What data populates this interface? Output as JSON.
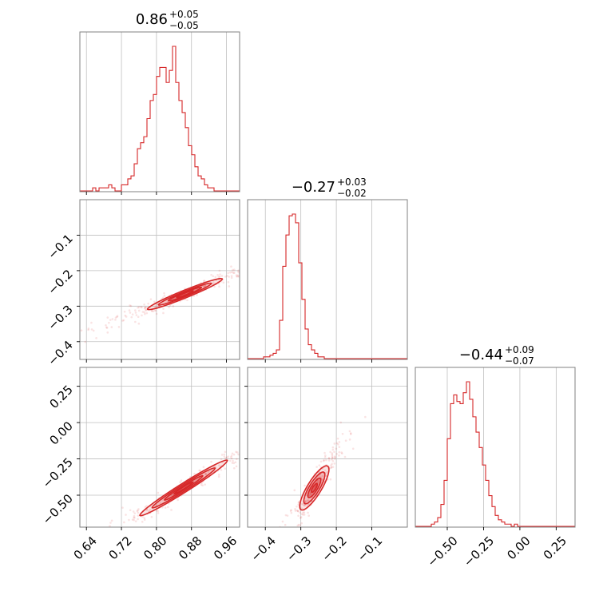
{
  "chart_data": {
    "type": "corner",
    "color": "#d62728",
    "grid": true,
    "titles": {
      "p0": {
        "median": "0.86",
        "plus": "+0.05",
        "minus": "−0.05"
      },
      "p1": {
        "median": "−0.27",
        "plus": "+0.03",
        "minus": "−0.02"
      },
      "p2": {
        "median": "−0.44",
        "plus": "+0.09",
        "minus": "−0.07"
      }
    },
    "ranges": {
      "p0": [
        0.625,
        0.99
      ],
      "p1": [
        -0.45,
        0.0
      ],
      "p2": [
        -0.72,
        0.38
      ]
    },
    "ticks": {
      "p0": {
        "values": [
          0.64,
          0.72,
          0.8,
          0.88,
          0.96
        ],
        "labels": [
          "0.64",
          "0.72",
          "0.80",
          "0.88",
          "0.96"
        ]
      },
      "p1": {
        "values": [
          -0.4,
          -0.3,
          -0.2,
          -0.1
        ],
        "labels": [
          "−0.4",
          "−0.3",
          "−0.2",
          "−0.1"
        ]
      },
      "p2": {
        "values": [
          -0.5,
          -0.25,
          0.0,
          0.25
        ],
        "labels": [
          "−0.50",
          "−0.25",
          "0.00",
          "0.25"
        ]
      }
    },
    "hist": {
      "p0": {
        "bin_start": 0.625,
        "bin_width": 0.0073,
        "counts": [
          0,
          0,
          0,
          0,
          1,
          0,
          1,
          1,
          1,
          2,
          1,
          0,
          0,
          2,
          2,
          4,
          5,
          9,
          14,
          16,
          18,
          24,
          30,
          32,
          38,
          41,
          41,
          36,
          40,
          48,
          36,
          30,
          26,
          21,
          15,
          12,
          8,
          5,
          4,
          2,
          1,
          1,
          0,
          0,
          0,
          0,
          0,
          0,
          0,
          0
        ]
      },
      "p1": {
        "bin_start": -0.45,
        "bin_width": 0.009,
        "counts": [
          0,
          0,
          0,
          0,
          0,
          1,
          1,
          2,
          3,
          5,
          22,
          53,
          71,
          82,
          83,
          78,
          55,
          34,
          17,
          8,
          5,
          3,
          1,
          1,
          0,
          0,
          0,
          0,
          0,
          0,
          0,
          0,
          0,
          0,
          0,
          0,
          0,
          0,
          0,
          0,
          0,
          0,
          0,
          0,
          0,
          0,
          0,
          0,
          0,
          0
        ]
      },
      "p2": {
        "bin_start": -0.72,
        "bin_width": 0.022,
        "counts": [
          0,
          0,
          0,
          0,
          0,
          1,
          2,
          4,
          10,
          21,
          40,
          56,
          60,
          57,
          56,
          61,
          66,
          58,
          50,
          43,
          36,
          28,
          21,
          14,
          9,
          5,
          3,
          2,
          1,
          1,
          0,
          1,
          0,
          0,
          0,
          0,
          0,
          0,
          0,
          0,
          0,
          0,
          0,
          0,
          0,
          0,
          0,
          0,
          0,
          0
        ]
      }
    },
    "contours": {
      "p0_p1": {
        "center": [
          0.865,
          -0.266
        ],
        "axis_dir": [
          0.19,
          0.095
        ],
        "half_major": [
          0.45,
          0.32,
          0.2,
          0.1
        ],
        "half_minor": [
          0.012,
          0.008,
          0.005,
          0.003
        ]
      },
      "p0_p2": {
        "center": [
          0.862,
          -0.45
        ],
        "axis_dir": [
          0.2,
          0.38
        ],
        "half_major": [
          0.5,
          0.36,
          0.22,
          0.11
        ],
        "half_minor": [
          0.014,
          0.01,
          0.006,
          0.003
        ]
      },
      "p1_p2": {
        "center": [
          -0.262,
          -0.45
        ],
        "axis_dir": [
          0.075,
          0.3
        ],
        "half_major": [
          0.5,
          0.36,
          0.22,
          0.1
        ],
        "half_minor": [
          0.022,
          0.016,
          0.01,
          0.005
        ]
      }
    }
  }
}
